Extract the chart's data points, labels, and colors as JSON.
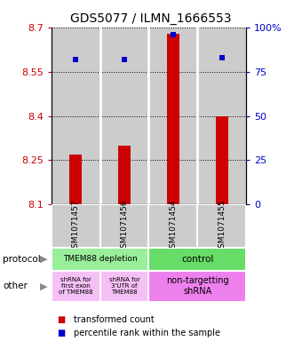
{
  "title": "GDS5077 / ILMN_1666553",
  "samples": [
    "GSM1071457",
    "GSM1071456",
    "GSM1071454",
    "GSM1071455"
  ],
  "bar_values": [
    8.27,
    8.3,
    8.68,
    8.4
  ],
  "bar_bottom": 8.1,
  "percentile_values": [
    82,
    82,
    96,
    83
  ],
  "ylim": [
    8.1,
    8.7
  ],
  "left_yticks": [
    8.1,
    8.25,
    8.4,
    8.55,
    8.7
  ],
  "right_yticks": [
    0,
    25,
    50,
    75,
    100
  ],
  "bar_color": "#cc0000",
  "dot_color": "#0000cc",
  "protocol_labels": [
    "TMEM88 depletion",
    "control"
  ],
  "protocol_color_left": "#99ee99",
  "protocol_color_right": "#66dd66",
  "other_label0": "shRNA for\nfirst exon\nof TMEM88",
  "other_label1": "shRNA for\n3'UTR of\nTMEM88",
  "other_label2": "non-targetting\nshRNA",
  "other_color_light": "#f5c0f5",
  "other_color_dark": "#ee80ee",
  "legend_red": "transformed count",
  "legend_blue": "percentile rank within the sample",
  "bg_color": "#cccccc",
  "sample_box_color": "#cccccc",
  "title_fontsize": 10,
  "tick_fontsize": 8,
  "bar_width": 0.25
}
